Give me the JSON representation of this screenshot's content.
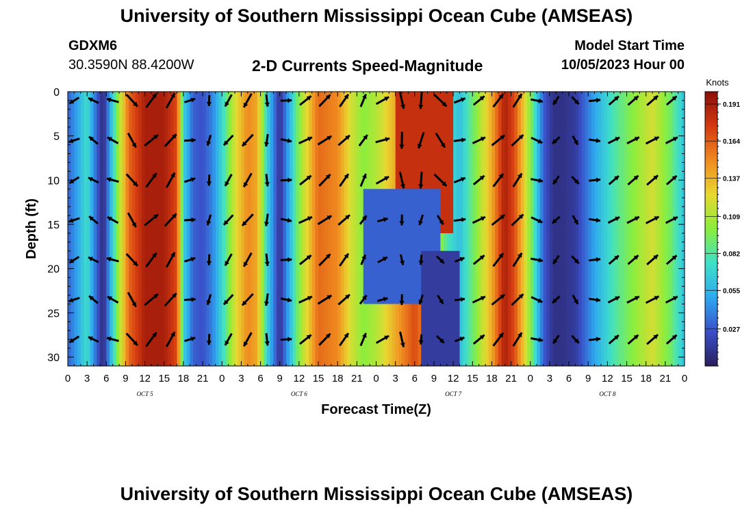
{
  "header": {
    "title": "University of Southern Mississippi Ocean Cube (AMSEAS)",
    "station": "GDXM6",
    "coords": "30.3590N  88.4200W",
    "subtitle": "2-D Currents Speed-Magnitude",
    "model_start_label": "Model Start Time",
    "model_start_value": "10/05/2023 Hour 00"
  },
  "footer": {
    "title": "University of Southern Mississippi Ocean Cube (AMSEAS)"
  },
  "chart_data": {
    "type": "heatmap",
    "title": "2-D Currents Speed-Magnitude",
    "xlabel": "Forecast Time(Z)",
    "ylabel": "Depth (ft)",
    "ylim": [
      0,
      31
    ],
    "y_ticks": [
      "0",
      "5",
      "10",
      "15",
      "20",
      "25",
      "30"
    ],
    "x_range_hours": [
      0,
      96
    ],
    "x_tick_labels": [
      "0",
      "3",
      "6",
      "9",
      "12",
      "15",
      "18",
      "21",
      "0",
      "3",
      "6",
      "9",
      "12",
      "15",
      "18",
      "21",
      "0",
      "3",
      "6",
      "9",
      "12",
      "15",
      "18",
      "21",
      "0",
      "3",
      "6",
      "9",
      "12",
      "15",
      "18",
      "21",
      "0"
    ],
    "dates": [
      {
        "label": "OCT  5",
        "hour": 12
      },
      {
        "label": "OCT  6",
        "hour": 36
      },
      {
        "label": "OCT  7",
        "hour": 60
      },
      {
        "label": "OCT  8",
        "hour": 84
      }
    ],
    "colorbar": {
      "unit": "Knots",
      "min": 0.0,
      "max": 0.2,
      "ticks": [
        "0.191",
        "0.164",
        "0.137",
        "0.109",
        "0.082",
        "0.055",
        "0.027"
      ],
      "tick_values": [
        0.191,
        0.164,
        0.137,
        0.109,
        0.082,
        0.055,
        0.027
      ],
      "colors": [
        "#2a1f5c",
        "#3a4fc8",
        "#2fa8f0",
        "#3fe0c8",
        "#8aee3c",
        "#e8d830",
        "#f08a20",
        "#d43a10",
        "#8a0f0a"
      ]
    },
    "column_speed_profile": {
      "hours": [
        0,
        1.5,
        3,
        4.5,
        5.5,
        7.5,
        9.5,
        12,
        15,
        17,
        18,
        19.5,
        21,
        22.5,
        24,
        26,
        28,
        29.5,
        31,
        33,
        36,
        39,
        42,
        44,
        46,
        48,
        51,
        54,
        57,
        59,
        61,
        63,
        66,
        68,
        69.5,
        72,
        74,
        75.5,
        77,
        79,
        82,
        85,
        88,
        91,
        94,
        96
      ],
      "speed_knots": [
        0.03,
        0.05,
        0.075,
        0.03,
        0.005,
        0.09,
        0.16,
        0.19,
        0.19,
        0.17,
        0.07,
        0.03,
        0.025,
        0.04,
        0.07,
        0.12,
        0.15,
        0.14,
        0.07,
        0.01,
        0.1,
        0.16,
        0.15,
        0.12,
        0.1,
        0.11,
        0.14,
        0.17,
        0.13,
        0.08,
        0.06,
        0.09,
        0.14,
        0.19,
        0.17,
        0.1,
        0.03,
        0.01,
        0.01,
        0.015,
        0.05,
        0.08,
        0.1,
        0.12,
        0.09,
        0.06
      ]
    },
    "anomalies": [
      {
        "name": "surface-surge",
        "hour_from": 51,
        "hour_to": 60,
        "depth_from": 0,
        "depth_to": 16,
        "speed_knots": 0.18
      },
      {
        "name": "slack-water-pocket",
        "hour_from": 46,
        "hour_to": 58,
        "depth_from": 11,
        "depth_to": 24,
        "speed_knots": 0.03
      },
      {
        "name": "eddy-core",
        "hour_from": 55,
        "hour_to": 61,
        "depth_from": 18,
        "depth_to": 31,
        "speed_knots": 0.015
      }
    ],
    "vector_grid": {
      "depth_rows_ft": [
        1,
        5.5,
        10,
        14.5,
        19,
        23.5,
        28
      ],
      "heading_by_hour": [
        {
          "hour": 0,
          "deg": 225
        },
        {
          "hour": 6,
          "deg": 340
        },
        {
          "hour": 12,
          "deg": 45
        },
        {
          "hour": 18,
          "deg": 30
        },
        {
          "hour": 21,
          "deg": 175
        },
        {
          "hour": 24,
          "deg": 215
        },
        {
          "hour": 30,
          "deg": 215
        },
        {
          "hour": 33,
          "deg": 110
        },
        {
          "hour": 36,
          "deg": 60
        },
        {
          "hour": 42,
          "deg": 45
        },
        {
          "hour": 48,
          "deg": 20
        },
        {
          "hour": 51,
          "deg": 160
        },
        {
          "hour": 54,
          "deg": 200
        },
        {
          "hour": 57,
          "deg": 170
        },
        {
          "hour": 60,
          "deg": 80
        },
        {
          "hour": 66,
          "deg": 45
        },
        {
          "hour": 72,
          "deg": 35
        },
        {
          "hour": 75,
          "deg": 250
        },
        {
          "hour": 78,
          "deg": 160
        },
        {
          "hour": 84,
          "deg": 55
        },
        {
          "hour": 96,
          "deg": 55
        }
      ]
    }
  }
}
